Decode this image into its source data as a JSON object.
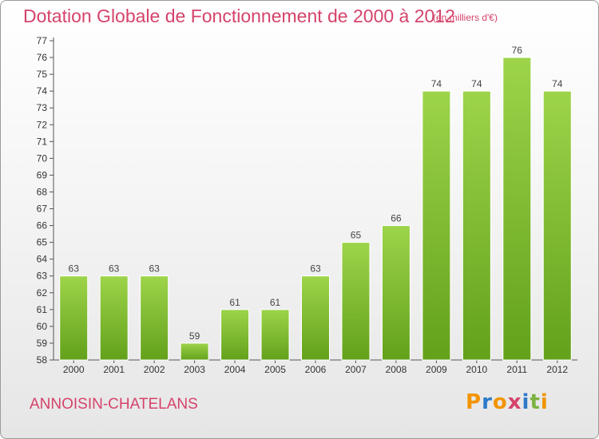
{
  "chart_data": {
    "type": "bar",
    "title": "Dotation Globale de Fonctionnement de 2000 à 2012",
    "unit_note": "(en milliers d'€)",
    "categories": [
      "2000",
      "2001",
      "2002",
      "2003",
      "2004",
      "2005",
      "2006",
      "2007",
      "2008",
      "2009",
      "2010",
      "2011",
      "2012"
    ],
    "values": [
      63,
      63,
      63,
      59,
      61,
      61,
      63,
      65,
      66,
      74,
      74,
      76,
      74
    ],
    "ylim": [
      58,
      77
    ],
    "yticks": [
      58,
      59,
      60,
      61,
      62,
      63,
      64,
      65,
      66,
      67,
      68,
      69,
      70,
      71,
      72,
      73,
      74,
      75,
      76,
      77
    ],
    "grid": false,
    "bar_colors": {
      "top": "#9dd44a",
      "bottom": "#63a11b"
    },
    "xlabel": "",
    "ylabel": ""
  },
  "footer": {
    "commune": "ANNOISIN-CHATELANS",
    "logo_text": "Proxiti"
  },
  "colors": {
    "title": "#d5436a",
    "logo_letters": [
      "#f29400",
      "#2c7ac9",
      "#f29400",
      "#d5436a",
      "#2c7ac9",
      "#7cb342",
      "#f29400"
    ]
  }
}
